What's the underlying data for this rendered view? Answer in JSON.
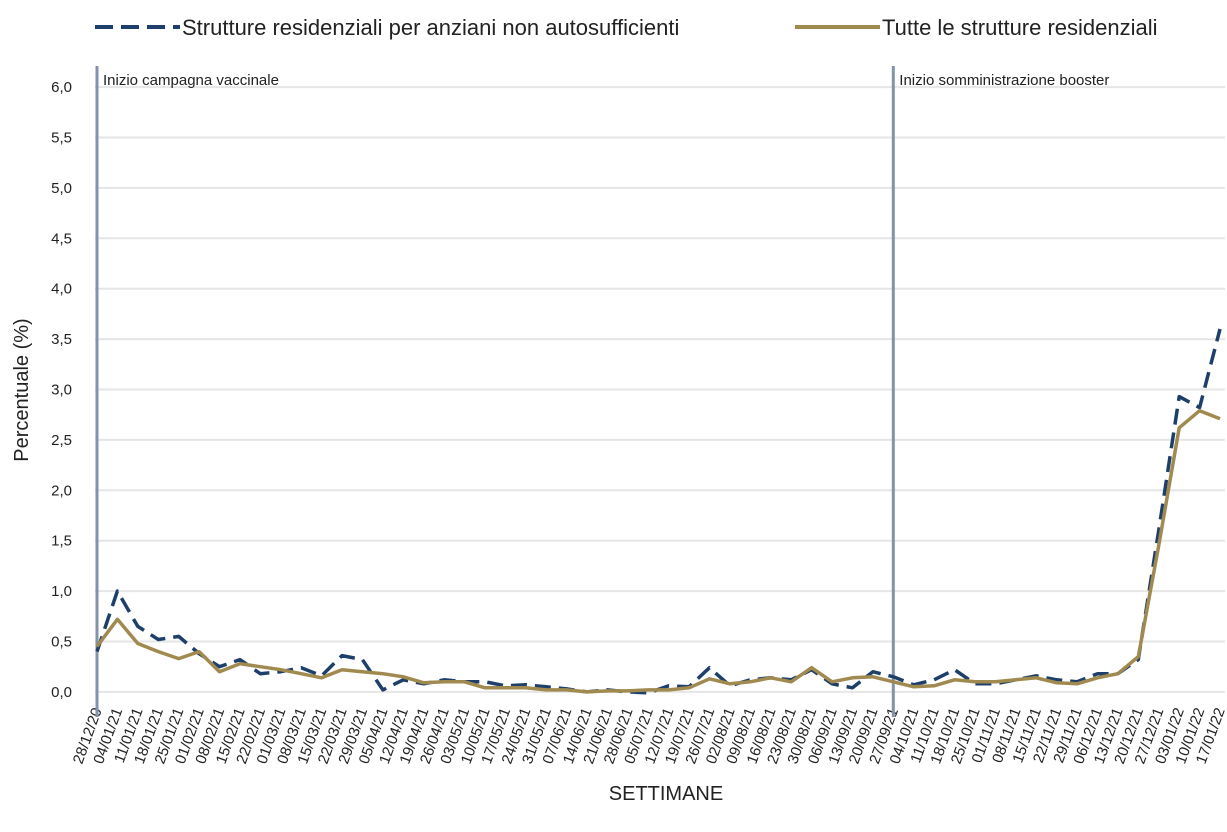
{
  "chart_data": {
    "type": "line",
    "xlabel": "SETTIMANE",
    "ylabel": "Percentuale (%)",
    "categories": [
      "28/12/20",
      "04/01/21",
      "11/01/21",
      "18/01/21",
      "25/01/21",
      "01/02/21",
      "08/02/21",
      "15/02/21",
      "22/02/21",
      "01/03/21",
      "08/03/21",
      "15/03/21",
      "22/03/21",
      "29/03/21",
      "05/04/21",
      "12/04/21",
      "19/04/21",
      "26/04/21",
      "03/05/21",
      "10/05/21",
      "17/05/21",
      "24/05/21",
      "31/05/21",
      "07/06/21",
      "14/06/21",
      "21/06/21",
      "28/06/21",
      "05/07/21",
      "12/07/21",
      "19/07/21",
      "26/07/21",
      "02/08/21",
      "09/08/21",
      "16/08/21",
      "23/08/21",
      "30/08/21",
      "06/09/21",
      "13/09/21",
      "20/09/21",
      "27/09/21",
      "04/10/21",
      "11/10/21",
      "18/10/21",
      "25/10/21",
      "01/11/21",
      "08/11/21",
      "15/11/21",
      "22/11/21",
      "29/11/21",
      "06/12/21",
      "13/12/21",
      "20/12/21",
      "27/12/21",
      "03/01/22",
      "10/01/22",
      "17/01/22"
    ],
    "series": [
      {
        "name": "Strutture residenziali per anziani non autosufficienti",
        "color": "#1f3f6b",
        "dash": true,
        "values": [
          0.4,
          1.0,
          0.65,
          0.52,
          0.55,
          0.38,
          0.25,
          0.32,
          0.18,
          0.2,
          0.24,
          0.16,
          0.36,
          0.32,
          0.02,
          0.12,
          0.08,
          0.12,
          0.1,
          0.1,
          0.06,
          0.07,
          0.05,
          0.03,
          0.0,
          0.02,
          0.0,
          -0.01,
          0.06,
          0.05,
          0.24,
          0.06,
          0.12,
          0.14,
          0.12,
          0.22,
          0.08,
          0.04,
          0.2,
          0.15,
          0.07,
          0.12,
          0.22,
          0.08,
          0.08,
          0.12,
          0.16,
          0.12,
          0.1,
          0.18,
          0.18,
          0.32,
          1.6,
          2.93,
          2.82,
          3.6
        ]
      },
      {
        "name": "Tutte le strutture residenziali",
        "color": "#a08a4f",
        "dash": false,
        "values": [
          0.45,
          0.72,
          0.48,
          0.4,
          0.33,
          0.4,
          0.2,
          0.28,
          0.25,
          0.22,
          0.18,
          0.14,
          0.22,
          0.2,
          0.18,
          0.15,
          0.09,
          0.1,
          0.1,
          0.04,
          0.04,
          0.04,
          0.02,
          0.02,
          0.0,
          0.01,
          0.01,
          0.02,
          0.02,
          0.04,
          0.13,
          0.08,
          0.1,
          0.14,
          0.1,
          0.24,
          0.1,
          0.14,
          0.15,
          0.1,
          0.05,
          0.06,
          0.12,
          0.1,
          0.1,
          0.12,
          0.14,
          0.09,
          0.08,
          0.14,
          0.18,
          0.35,
          1.45,
          2.62,
          2.79,
          2.71
        ]
      }
    ],
    "annotations": [
      {
        "text": "Inizio campagna vaccinale",
        "x": "28/12/20"
      },
      {
        "text": "Inizio somministrazione booster",
        "x": "27/09/21"
      }
    ],
    "ylim": [
      -0.15,
      6.15
    ],
    "yticks": [
      {
        "value": 0,
        "label": "0,0"
      },
      {
        "value": 0.5,
        "label": "0,5"
      },
      {
        "value": 1,
        "label": "1,0"
      },
      {
        "value": 1.5,
        "label": "1,5"
      },
      {
        "value": 2,
        "label": "2,0"
      },
      {
        "value": 2.5,
        "label": "2,5"
      },
      {
        "value": 3,
        "label": "3,0"
      },
      {
        "value": 3.5,
        "label": "3,5"
      },
      {
        "value": 4,
        "label": "4,0"
      },
      {
        "value": 4.5,
        "label": "4,5"
      },
      {
        "value": 5,
        "label": "5,0"
      },
      {
        "value": 5.5,
        "label": "5,5"
      },
      {
        "value": 6,
        "label": "6,0"
      }
    ],
    "grid": true,
    "legend": "top"
  }
}
